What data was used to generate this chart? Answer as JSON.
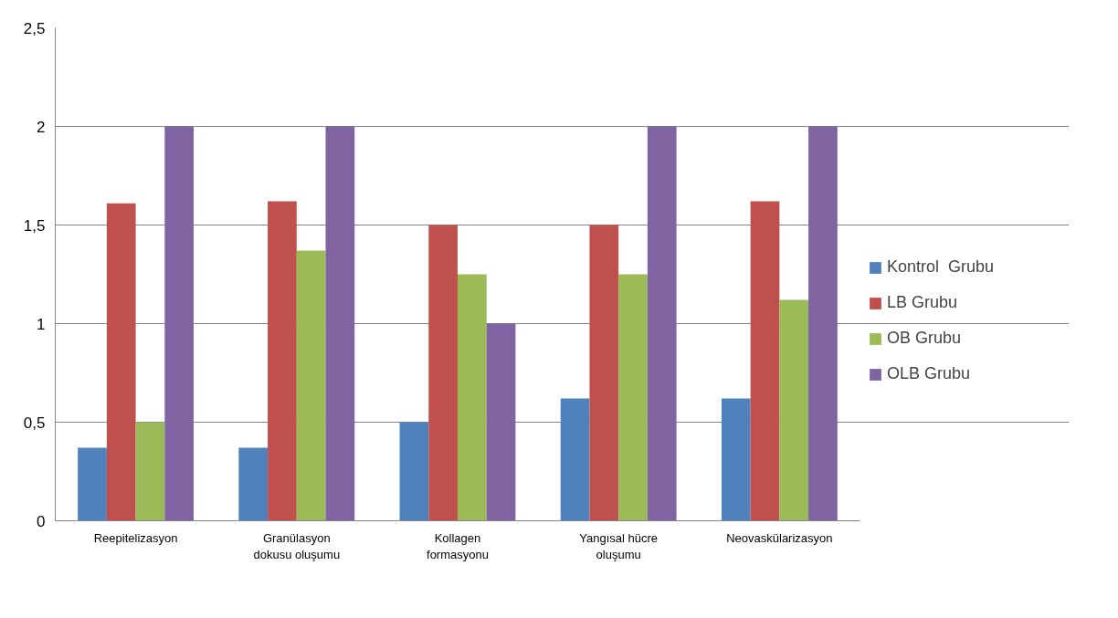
{
  "chart_data": {
    "type": "bar",
    "categories": [
      "Reepitelizasyon",
      "Granülasyon dokusu oluşumu",
      "Kollagen formasyonu",
      "Yangısal hücre oluşumu",
      "Neovaskülarizasyon"
    ],
    "series": [
      {
        "name": "Kontrol  Grubu",
        "color": "#4f81bd",
        "values": [
          0.37,
          0.37,
          0.5,
          0.62,
          0.62
        ]
      },
      {
        "name": "LB Grubu",
        "color": "#c0504d",
        "values": [
          1.61,
          1.62,
          1.5,
          1.5,
          1.62
        ]
      },
      {
        "name": "OB Grubu",
        "color": "#9bbb59",
        "values": [
          0.5,
          1.37,
          1.25,
          1.25,
          1.12
        ]
      },
      {
        "name": "OLB Grubu",
        "color": "#8064a2",
        "values": [
          2,
          2,
          1,
          2,
          2
        ]
      }
    ],
    "ylim": [
      0,
      2.5
    ],
    "yticks": [
      0,
      {
        "value": 0.5,
        "label": "0,5"
      },
      1,
      {
        "value": 1.5,
        "label": "1,5"
      },
      2,
      {
        "value": 2.5,
        "label": "2,5"
      }
    ],
    "grid": "y",
    "legend": "right"
  }
}
